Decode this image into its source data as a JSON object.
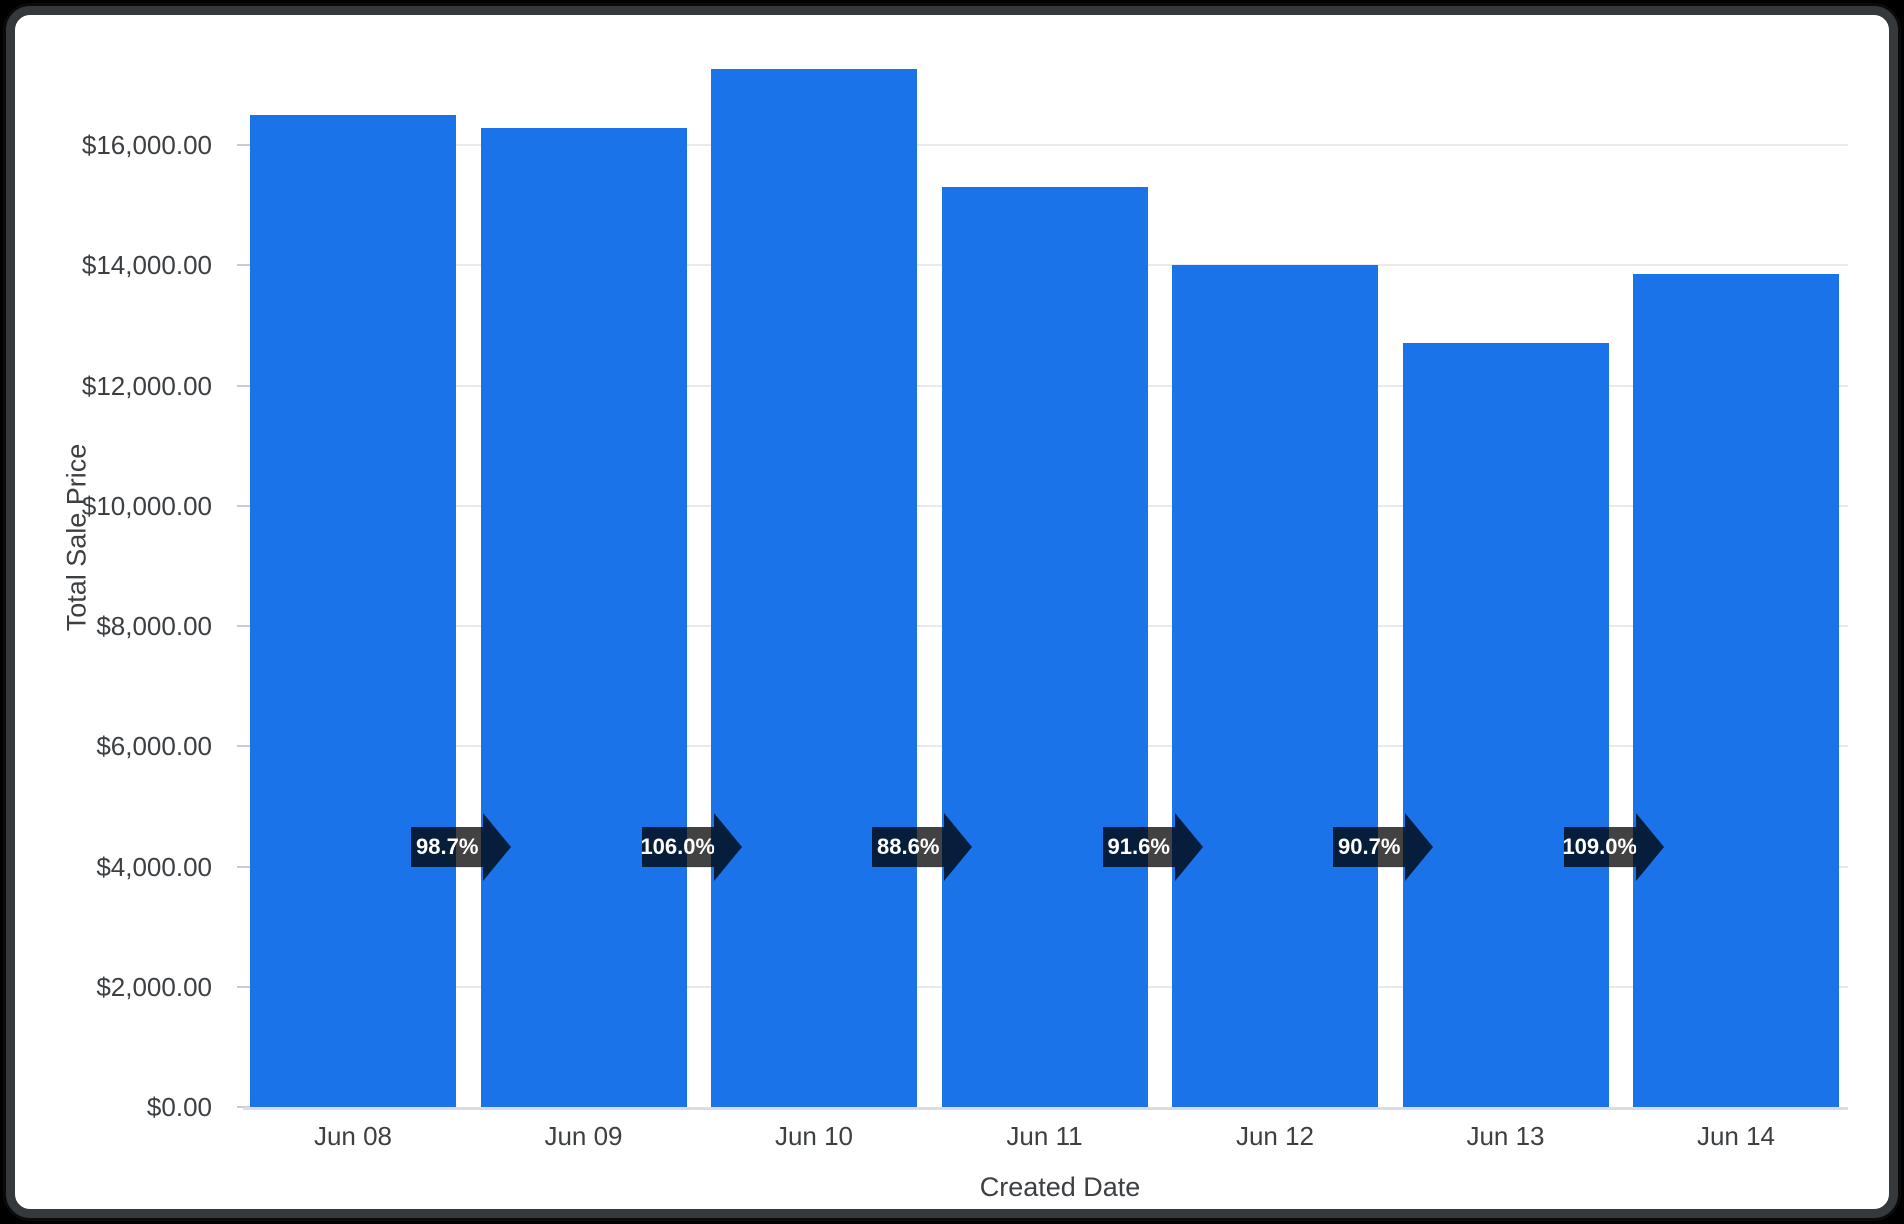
{
  "chart_data": {
    "type": "bar",
    "title": "",
    "categories": [
      "Jun 08",
      "Jun 09",
      "Jun 10",
      "Jun 11",
      "Jun 12",
      "Jun 13",
      "Jun 14"
    ],
    "values": [
      16500,
      16286,
      17263,
      15295,
      14010,
      12707,
      13851
    ],
    "percent_changes": [
      "98.7%",
      "106.0%",
      "88.6%",
      "91.6%",
      "90.7%",
      "109.0%"
    ],
    "xlabel": "Created Date",
    "ylabel": "Total Sale Price",
    "y_tick_values": [
      0,
      2000,
      4000,
      6000,
      8000,
      10000,
      12000,
      14000,
      16000
    ],
    "y_tick_labels": [
      "$0.00",
      "$2,000.00",
      "$4,000.00",
      "$6,000.00",
      "$8,000.00",
      "$10,000.00",
      "$12,000.00",
      "$14,000.00",
      "$16,000.00"
    ],
    "ylim": [
      0,
      17800
    ],
    "grid": true,
    "legend": "none",
    "colors": {
      "bar": "#1a73e8",
      "arrow_fill": "rgba(0,0,0,0.74)",
      "arrow_text": "#ffffff",
      "axis_text": "#3c4043",
      "gridline": "#e9eaec",
      "axis_line": "#d8dce4",
      "frame_border": "#35393c",
      "page_background": "#000000",
      "card_background": "#ffffff"
    }
  }
}
